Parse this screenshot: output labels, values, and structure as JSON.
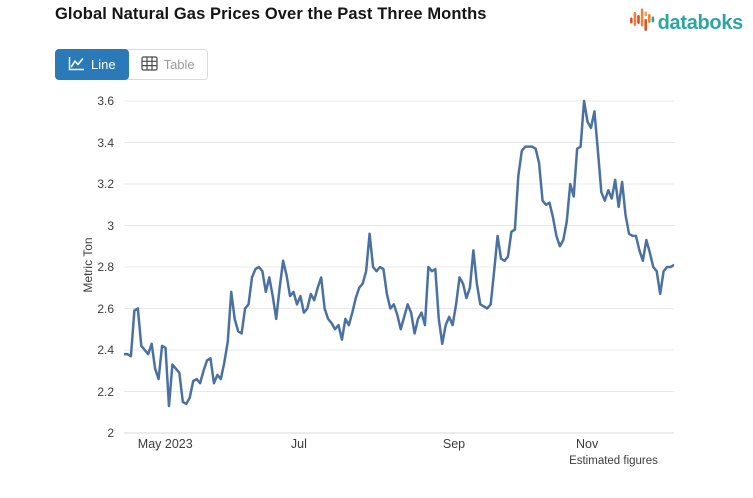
{
  "header": {
    "title": "Global Natural Gas Prices Over the Past Three Months",
    "logo_text": "databoks"
  },
  "toolbar": {
    "line_label": "Line",
    "table_label": "Table"
  },
  "colors": {
    "accent_button": "#2a7ab9",
    "series_line": "#4a71a1",
    "gridline": "#e8e8e8",
    "axis_line": "#d8d8d8",
    "logo_teal": "#2ca5a5",
    "logo_orange": "#f08232",
    "logo_red": "#dd4f2e"
  },
  "chart_data": {
    "type": "line",
    "title": "Global Natural Gas Prices Over the Past Three Months",
    "xlabel": "",
    "ylabel": "Metric Ton",
    "ylim": [
      2,
      3.6
    ],
    "yticks": [
      2,
      2.2,
      2.4,
      2.6,
      2.8,
      3,
      3.2,
      3.4,
      3.6
    ],
    "xticks": [
      {
        "label": "May 2023",
        "pos_pct": 7.5
      },
      {
        "label": "Jul",
        "pos_pct": 31.8
      },
      {
        "label": "Sep",
        "pos_pct": 60.0
      },
      {
        "label": "Nov",
        "pos_pct": 84.2
      }
    ],
    "annotation": "Estimated figures",
    "grid": true,
    "legend": false,
    "values": [
      2.38,
      2.38,
      2.37,
      2.59,
      2.6,
      2.42,
      2.4,
      2.38,
      2.43,
      2.31,
      2.26,
      2.42,
      2.41,
      2.13,
      2.33,
      2.31,
      2.29,
      2.15,
      2.14,
      2.17,
      2.25,
      2.26,
      2.24,
      2.3,
      2.35,
      2.36,
      2.24,
      2.28,
      2.26,
      2.34,
      2.44,
      2.68,
      2.55,
      2.49,
      2.48,
      2.6,
      2.62,
      2.75,
      2.79,
      2.8,
      2.78,
      2.68,
      2.75,
      2.66,
      2.55,
      2.7,
      2.83,
      2.76,
      2.66,
      2.68,
      2.62,
      2.66,
      2.58,
      2.6,
      2.67,
      2.64,
      2.7,
      2.75,
      2.6,
      2.55,
      2.53,
      2.5,
      2.52,
      2.45,
      2.55,
      2.52,
      2.58,
      2.65,
      2.7,
      2.72,
      2.78,
      2.96,
      2.8,
      2.78,
      2.8,
      2.79,
      2.67,
      2.6,
      2.62,
      2.57,
      2.5,
      2.56,
      2.62,
      2.58,
      2.48,
      2.55,
      2.58,
      2.52,
      2.8,
      2.78,
      2.79,
      2.55,
      2.43,
      2.52,
      2.56,
      2.52,
      2.62,
      2.75,
      2.72,
      2.65,
      2.7,
      2.88,
      2.72,
      2.62,
      2.61,
      2.6,
      2.62,
      2.78,
      2.95,
      2.84,
      2.83,
      2.85,
      2.97,
      2.98,
      3.24,
      3.36,
      3.38,
      3.38,
      3.38,
      3.37,
      3.3,
      3.12,
      3.1,
      3.11,
      3.04,
      2.95,
      2.9,
      2.93,
      3.02,
      3.2,
      3.14,
      3.37,
      3.38,
      3.6,
      3.5,
      3.47,
      3.55,
      3.36,
      3.16,
      3.12,
      3.17,
      3.13,
      3.22,
      3.09,
      3.21,
      3.05,
      2.96,
      2.95,
      2.95,
      2.88,
      2.83,
      2.93,
      2.87,
      2.8,
      2.78,
      2.67,
      2.78,
      2.8,
      2.8,
      2.81
    ]
  }
}
